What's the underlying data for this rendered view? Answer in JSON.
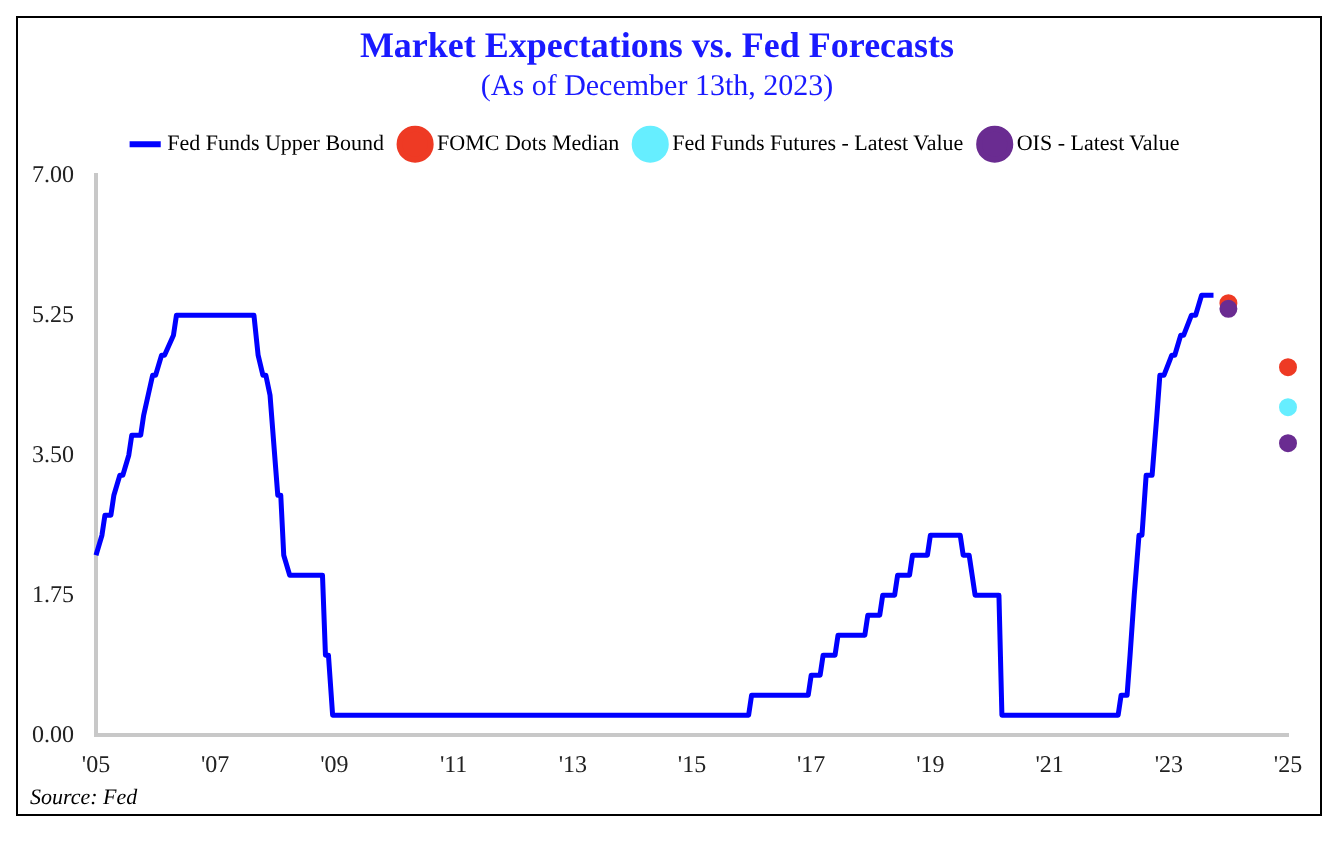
{
  "chart_data": {
    "type": "line",
    "title": "Market Expectations vs. Fed Forecasts",
    "subtitle": "(As of December 13th, 2023)",
    "xlim": [
      2005,
      2025
    ],
    "xticks": [
      {
        "value": 2005,
        "label": "'05"
      },
      {
        "value": 2007,
        "label": "'07"
      },
      {
        "value": 2009,
        "label": "'09"
      },
      {
        "value": 2011,
        "label": "'11"
      },
      {
        "value": 2013,
        "label": "'13"
      },
      {
        "value": 2015,
        "label": "'15"
      },
      {
        "value": 2017,
        "label": "'17"
      },
      {
        "value": 2019,
        "label": "'19"
      },
      {
        "value": 2021,
        "label": "'21"
      },
      {
        "value": 2023,
        "label": "'23"
      },
      {
        "value": 2025,
        "label": "'25"
      }
    ],
    "ylim": [
      0,
      7
    ],
    "yticks": [
      {
        "value": 0,
        "label": "0.00"
      },
      {
        "value": 1.75,
        "label": "1.75"
      },
      {
        "value": 3.5,
        "label": "3.50"
      },
      {
        "value": 5.25,
        "label": "5.25"
      },
      {
        "value": 7,
        "label": "7.00"
      }
    ],
    "grid": false,
    "legend": "top",
    "series": [
      {
        "name": "Fed Funds Upper Bound",
        "color": "#0000ff",
        "marker": "none",
        "x": [
          2005.0,
          2005.1,
          2005.15,
          2005.25,
          2005.3,
          2005.4,
          2005.45,
          2005.55,
          2005.6,
          2005.75,
          2005.8,
          2005.95,
          2006.0,
          2006.1,
          2006.15,
          2006.3,
          2006.35,
          2006.5,
          2007.65,
          2007.72,
          2007.8,
          2007.85,
          2007.92,
          2008.05,
          2008.1,
          2008.15,
          2008.25,
          2008.8,
          2008.85,
          2008.9,
          2008.97,
          2015.95,
          2016.0,
          2016.95,
          2017.0,
          2017.15,
          2017.2,
          2017.4,
          2017.45,
          2017.9,
          2017.95,
          2018.15,
          2018.2,
          2018.4,
          2018.45,
          2018.65,
          2018.7,
          2018.95,
          2019.0,
          2019.5,
          2019.55,
          2019.65,
          2019.75,
          2020.15,
          2020.2,
          2022.15,
          2022.2,
          2022.3,
          2022.35,
          2022.42,
          2022.5,
          2022.55,
          2022.62,
          2022.72,
          2022.8,
          2022.85,
          2022.92,
          2023.05,
          2023.1,
          2023.2,
          2023.25,
          2023.38,
          2023.45,
          2023.55,
          2023.75
        ],
        "values": [
          2.25,
          2.5,
          2.75,
          2.75,
          3.0,
          3.25,
          3.25,
          3.5,
          3.75,
          3.75,
          4.0,
          4.5,
          4.5,
          4.75,
          4.75,
          5.0,
          5.25,
          5.25,
          5.25,
          4.75,
          4.5,
          4.5,
          4.25,
          3.0,
          3.0,
          2.25,
          2.0,
          2.0,
          1.0,
          1.0,
          0.25,
          0.25,
          0.5,
          0.5,
          0.75,
          0.75,
          1.0,
          1.0,
          1.25,
          1.25,
          1.5,
          1.5,
          1.75,
          1.75,
          2.0,
          2.0,
          2.25,
          2.25,
          2.5,
          2.5,
          2.25,
          2.25,
          1.75,
          1.75,
          0.25,
          0.25,
          0.5,
          0.5,
          1.0,
          1.75,
          2.5,
          2.5,
          3.25,
          3.25,
          4.0,
          4.5,
          4.5,
          4.75,
          4.75,
          5.0,
          5.0,
          5.25,
          5.25,
          5.5,
          5.5
        ]
      },
      {
        "name": "FOMC Dots Median",
        "type": "scatter",
        "color": "#ee3a24",
        "marker": "circle",
        "x": [
          2024.0,
          2025.0
        ],
        "values": [
          5.4,
          4.6
        ]
      },
      {
        "name": "Fed Funds Futures - Latest Value",
        "type": "scatter",
        "color": "#66eeff",
        "marker": "circle",
        "x": [
          2025.0
        ],
        "values": [
          4.1
        ]
      },
      {
        "name": "OIS - Latest Value",
        "type": "scatter",
        "color": "#6a2c91",
        "marker": "circle",
        "x": [
          2024.0,
          2025.0
        ],
        "values": [
          5.33,
          3.65
        ]
      }
    ],
    "annotations": [
      "Source: Fed"
    ]
  }
}
